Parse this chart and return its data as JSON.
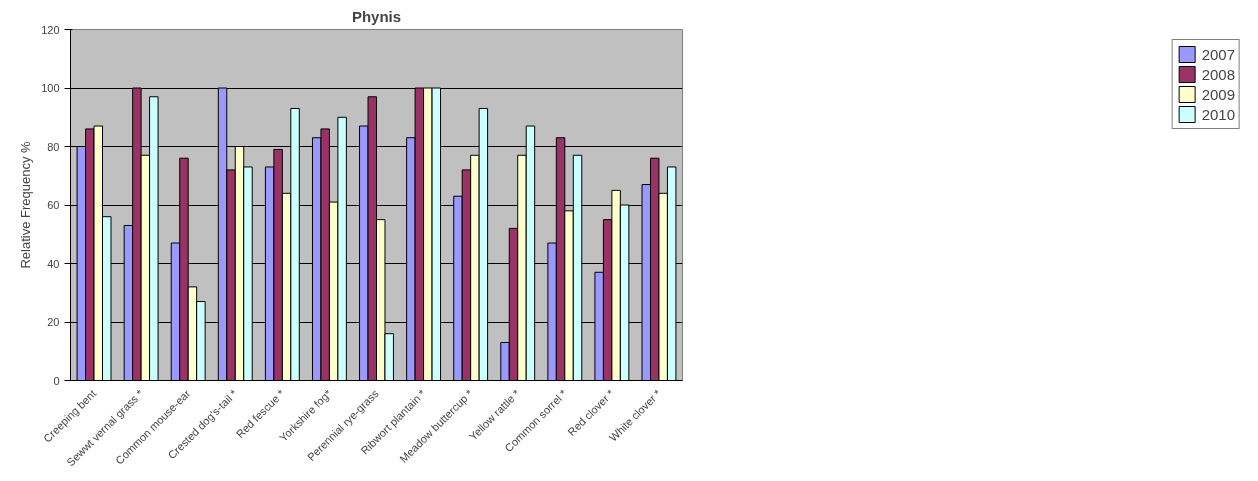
{
  "chart_data": {
    "type": "bar",
    "title": "Phynis",
    "ylabel": "Relative Frequency %",
    "categories": [
      "Creeping bent",
      "Sewwt vernal grass *",
      "Common mouse-ear",
      "Crested dog's-tail *",
      "Red fescue *",
      "Yorkshire fog*",
      "Perennial rye-grass",
      "Ribwort plantain *",
      "Meadow buttercup *",
      "Yellow rattle *",
      "Common sorrel *",
      "Red clover *",
      "White clover *"
    ],
    "series": [
      {
        "name": "2007",
        "color": "#9999ff",
        "values": [
          80,
          53,
          47,
          100,
          73,
          83,
          87,
          83,
          63,
          13,
          47,
          37,
          67
        ]
      },
      {
        "name": "2008",
        "color": "#993366",
        "values": [
          86,
          100,
          76,
          72,
          79,
          86,
          97,
          100,
          72,
          52,
          83,
          55,
          76
        ]
      },
      {
        "name": "2009",
        "color": "#ffffcc",
        "values": [
          87,
          77,
          32,
          80,
          64,
          61,
          55,
          100,
          77,
          77,
          58,
          65,
          64
        ]
      },
      {
        "name": "2010",
        "color": "#ccffff",
        "values": [
          56,
          97,
          27,
          73,
          93,
          90,
          16,
          100,
          93,
          87,
          77,
          60,
          73
        ]
      }
    ],
    "ylim": [
      0,
      120
    ],
    "yticks": [
      0,
      20,
      40,
      60,
      80,
      100,
      120
    ],
    "grid": "y",
    "legend": "right"
  }
}
